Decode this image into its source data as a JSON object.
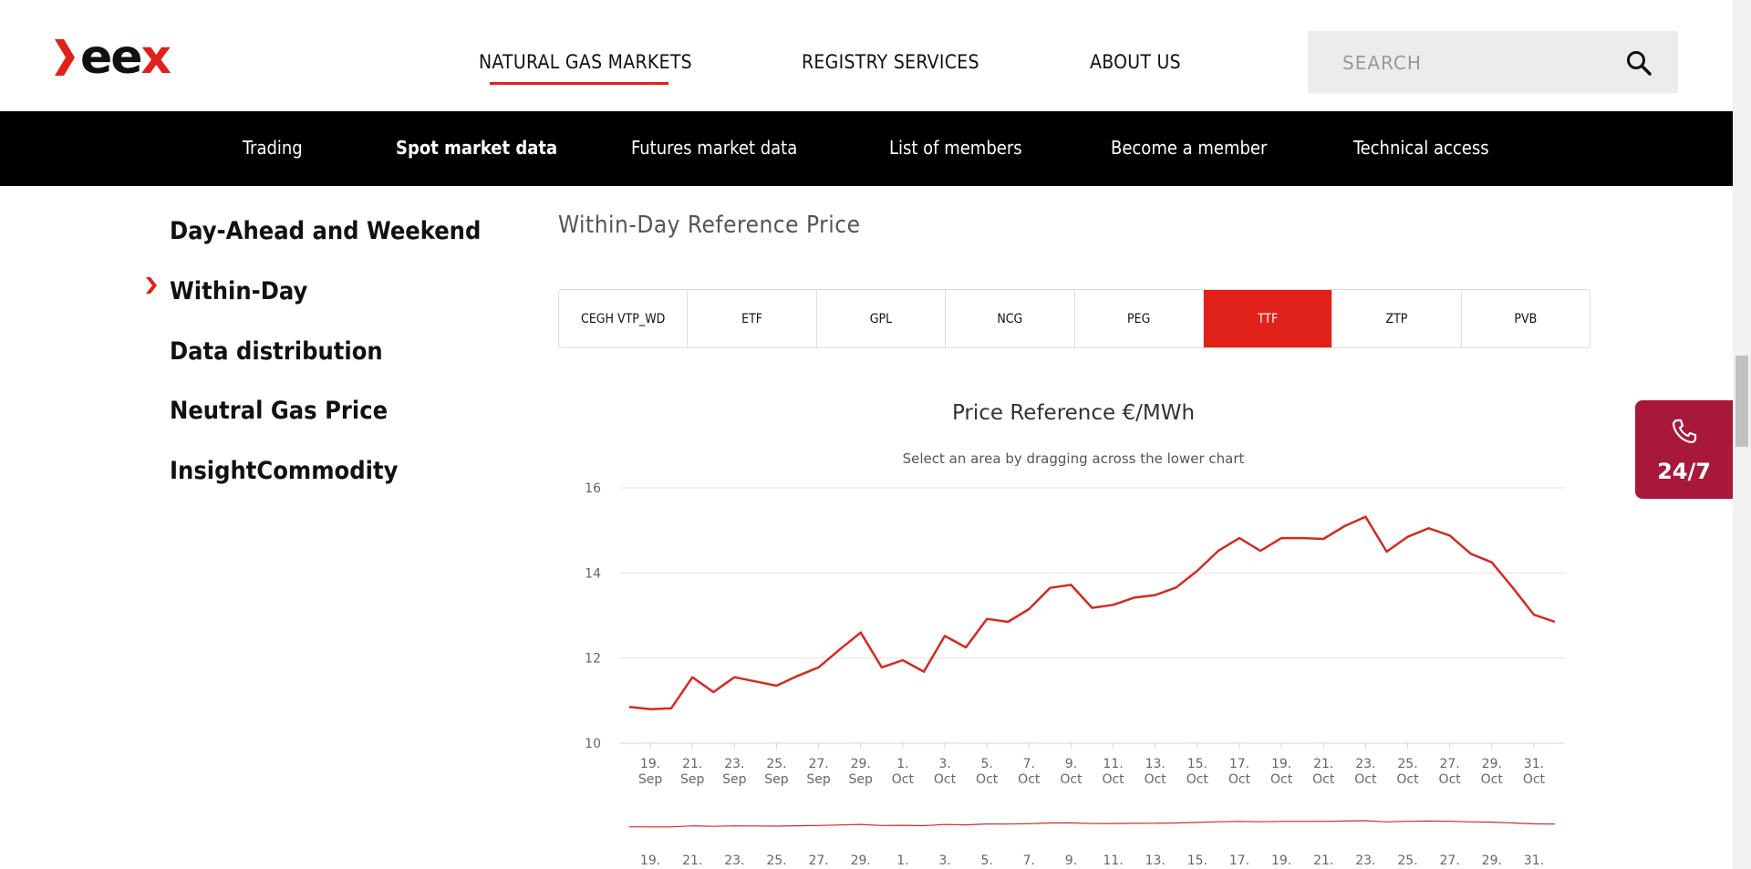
{
  "header": {
    "logo_text": "eex",
    "nav": [
      {
        "label": "NATURAL GAS MARKETS",
        "active": true
      },
      {
        "label": "REGISTRY SERVICES",
        "active": false
      },
      {
        "label": "ABOUT US",
        "active": false
      }
    ],
    "search": {
      "placeholder": "SEARCH",
      "value": ""
    }
  },
  "subnav": [
    {
      "label": "Trading",
      "active": false
    },
    {
      "label": "Spot market data",
      "active": true
    },
    {
      "label": "Futures market data",
      "active": false
    },
    {
      "label": "List of members",
      "active": false
    },
    {
      "label": "Become a member",
      "active": false
    },
    {
      "label": "Technical access",
      "active": false
    }
  ],
  "sidebar": {
    "items": [
      {
        "label": "Day-Ahead and Weekend",
        "active": false
      },
      {
        "label": "Within-Day",
        "active": true
      },
      {
        "label": "Data distribution",
        "active": false
      },
      {
        "label": "Neutral Gas Price",
        "active": false
      },
      {
        "label": "InsightCommodity",
        "active": false
      }
    ]
  },
  "main": {
    "section_title": "Within-Day Reference Price",
    "tabs": [
      {
        "label": "CEGH VTP_WD",
        "active": false
      },
      {
        "label": "ETF",
        "active": false
      },
      {
        "label": "GPL",
        "active": false
      },
      {
        "label": "NCG",
        "active": false
      },
      {
        "label": "PEG",
        "active": false
      },
      {
        "label": "TTF",
        "active": true
      },
      {
        "label": "ZTP",
        "active": false
      },
      {
        "label": "PVB",
        "active": false
      }
    ]
  },
  "hotline": {
    "label": "24/7",
    "icon": "phone-icon",
    "color": "#a8183a"
  },
  "colors": {
    "accent": "#e0211a",
    "hotline": "#a8183a"
  },
  "chart_data": {
    "type": "line",
    "title": "Price Reference €/MWh",
    "subtitle": "Select an area by dragging across the lower chart",
    "ylim": [
      10,
      16
    ],
    "yticks": [
      10,
      12,
      14,
      16
    ],
    "grid": true,
    "xstart_index": 0,
    "xticks": [
      {
        "i": 1,
        "day": "19.",
        "month": "Sep"
      },
      {
        "i": 3,
        "day": "21.",
        "month": "Sep"
      },
      {
        "i": 5,
        "day": "23.",
        "month": "Sep"
      },
      {
        "i": 7,
        "day": "25.",
        "month": "Sep"
      },
      {
        "i": 9,
        "day": "27.",
        "month": "Sep"
      },
      {
        "i": 11,
        "day": "29.",
        "month": "Sep"
      },
      {
        "i": 13,
        "day": "1.",
        "month": "Oct"
      },
      {
        "i": 15,
        "day": "3.",
        "month": "Oct"
      },
      {
        "i": 17,
        "day": "5.",
        "month": "Oct"
      },
      {
        "i": 19,
        "day": "7.",
        "month": "Oct"
      },
      {
        "i": 21,
        "day": "9.",
        "month": "Oct"
      },
      {
        "i": 23,
        "day": "11.",
        "month": "Oct"
      },
      {
        "i": 25,
        "day": "13.",
        "month": "Oct"
      },
      {
        "i": 27,
        "day": "15.",
        "month": "Oct"
      },
      {
        "i": 29,
        "day": "17.",
        "month": "Oct"
      },
      {
        "i": 31,
        "day": "19.",
        "month": "Oct"
      },
      {
        "i": 33,
        "day": "21.",
        "month": "Oct"
      },
      {
        "i": 35,
        "day": "23.",
        "month": "Oct"
      },
      {
        "i": 37,
        "day": "25.",
        "month": "Oct"
      },
      {
        "i": 39,
        "day": "27.",
        "month": "Oct"
      },
      {
        "i": 41,
        "day": "29.",
        "month": "Oct"
      },
      {
        "i": 43,
        "day": "31.",
        "month": "Oct"
      }
    ],
    "series": [
      {
        "color": "#d22b24",
        "values": [
          10.85,
          10.8,
          10.82,
          11.55,
          11.2,
          11.55,
          11.45,
          11.35,
          11.58,
          11.78,
          12.2,
          12.6,
          11.78,
          11.95,
          11.68,
          12.52,
          12.25,
          12.92,
          12.85,
          13.15,
          13.65,
          13.72,
          13.18,
          13.25,
          13.42,
          13.48,
          13.66,
          14.05,
          14.52,
          14.82,
          14.52,
          14.82,
          14.82,
          14.8,
          15.1,
          15.32,
          14.5,
          14.85,
          15.05,
          14.88,
          14.45,
          14.25,
          13.65,
          13.02,
          12.85
        ]
      }
    ]
  }
}
